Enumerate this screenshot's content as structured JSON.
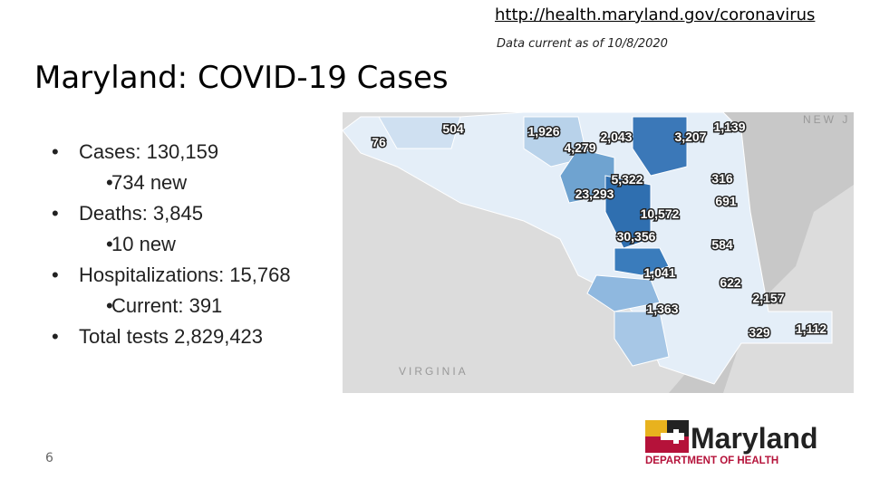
{
  "header": {
    "link": "http://health.maryland.gov/coronavirus",
    "note": "Data current as of 10/8/2020",
    "title": "Maryland: COVID-19 Cases"
  },
  "bullets": [
    {
      "text": "Cases: 130,159",
      "sub": "734 new"
    },
    {
      "text": "Deaths: 3,845",
      "sub": "10 new"
    },
    {
      "text": "Hospitalizations: 15,768",
      "sub": "Current: 391"
    },
    {
      "text": "Total tests 2,829,423"
    }
  ],
  "map": {
    "labels": [
      "76",
      "504",
      "1,926",
      "2,043",
      "3,207",
      "1,139",
      "4,279",
      "5,322",
      "316",
      "23,293",
      "691",
      "10,572",
      "30,356",
      "584",
      "1,041",
      "622",
      "2,157",
      "1,363",
      "329",
      "1,112"
    ],
    "region_labels": [
      "NEW J",
      "VIRGINIA"
    ]
  },
  "logo": {
    "name": "Maryland",
    "department": "DEPARTMENT OF HEALTH"
  },
  "page_number": "6"
}
